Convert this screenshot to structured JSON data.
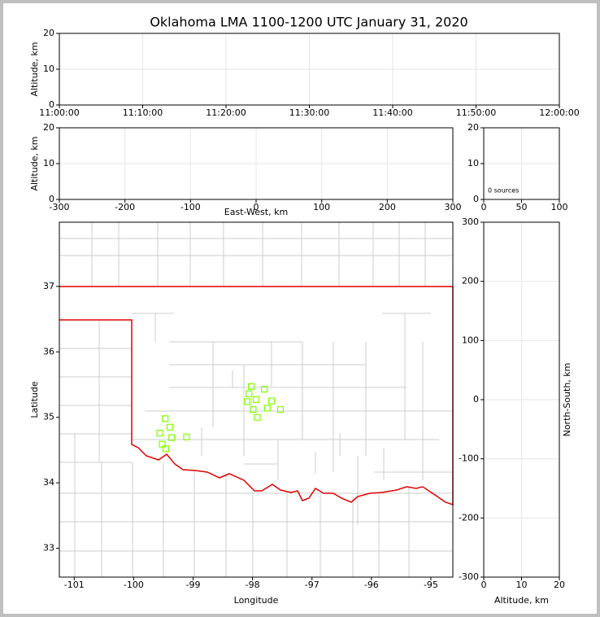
{
  "title": "Oklahoma LMA 1100-1200 UTC January 31, 2020",
  "chart_data": [
    {
      "type": "scatter",
      "ylabel": "Altitude, km",
      "xlim": [
        "11:00:00",
        "12:00:00"
      ],
      "xticks": [
        "11:00:00",
        "11:10:00",
        "11:20:00",
        "11:30:00",
        "11:40:00",
        "11:50:00",
        "12:00:00"
      ],
      "ylim": [
        0,
        20
      ],
      "yticks": [
        0,
        10,
        20
      ],
      "grid": true
    },
    {
      "type": "scatter",
      "xlabel": "East-West, km",
      "ylabel": "Altitude, km",
      "xlim": [
        -300,
        300
      ],
      "xticks": [
        -300,
        -200,
        -100,
        0,
        100,
        200,
        300
      ],
      "ylim": [
        0,
        20
      ],
      "yticks": [
        0,
        10,
        20
      ],
      "grid": true
    },
    {
      "type": "bar",
      "annotation": "0 sources",
      "xlim": [
        0,
        100
      ],
      "xticks": [
        0,
        50,
        100
      ],
      "ylim": [
        0,
        20
      ],
      "yticks": [
        0,
        10,
        20
      ],
      "grid": true
    },
    {
      "type": "scatter",
      "xlabel": "Longitude",
      "ylabel": "Latitude",
      "xlim": [
        -101.25,
        -94.63
      ],
      "xticks": [
        -101,
        -100,
        -99,
        -98,
        -97,
        -96,
        -95
      ],
      "ylim": [
        32.56,
        37.98
      ],
      "yticks": [
        33,
        34,
        35,
        36,
        37
      ],
      "grid": false,
      "color": "#7fff00",
      "x": [
        -99.47,
        -99.39,
        -99.56,
        -99.36,
        -99.52,
        -99.46,
        -99.11,
        -98.02,
        -97.8,
        -98.06,
        -98.09,
        -97.94,
        -97.68,
        -97.99,
        -97.75,
        -97.53,
        -97.92
      ],
      "y": [
        34.98,
        34.85,
        34.76,
        34.69,
        34.59,
        34.52,
        34.7,
        35.47,
        35.43,
        35.36,
        35.24,
        35.27,
        35.25,
        35.12,
        35.14,
        35.12,
        35.0
      ]
    },
    {
      "type": "scatter",
      "xlabel": "Altitude, km",
      "ylabel": "North-South, km",
      "ylabel_position": "right",
      "xlim": [
        0,
        20
      ],
      "xticks": [
        0,
        10,
        20
      ],
      "ylim": [
        -300,
        300
      ],
      "yticks": [
        -300,
        -200,
        -100,
        0,
        100,
        200,
        300
      ],
      "grid": true
    }
  ]
}
